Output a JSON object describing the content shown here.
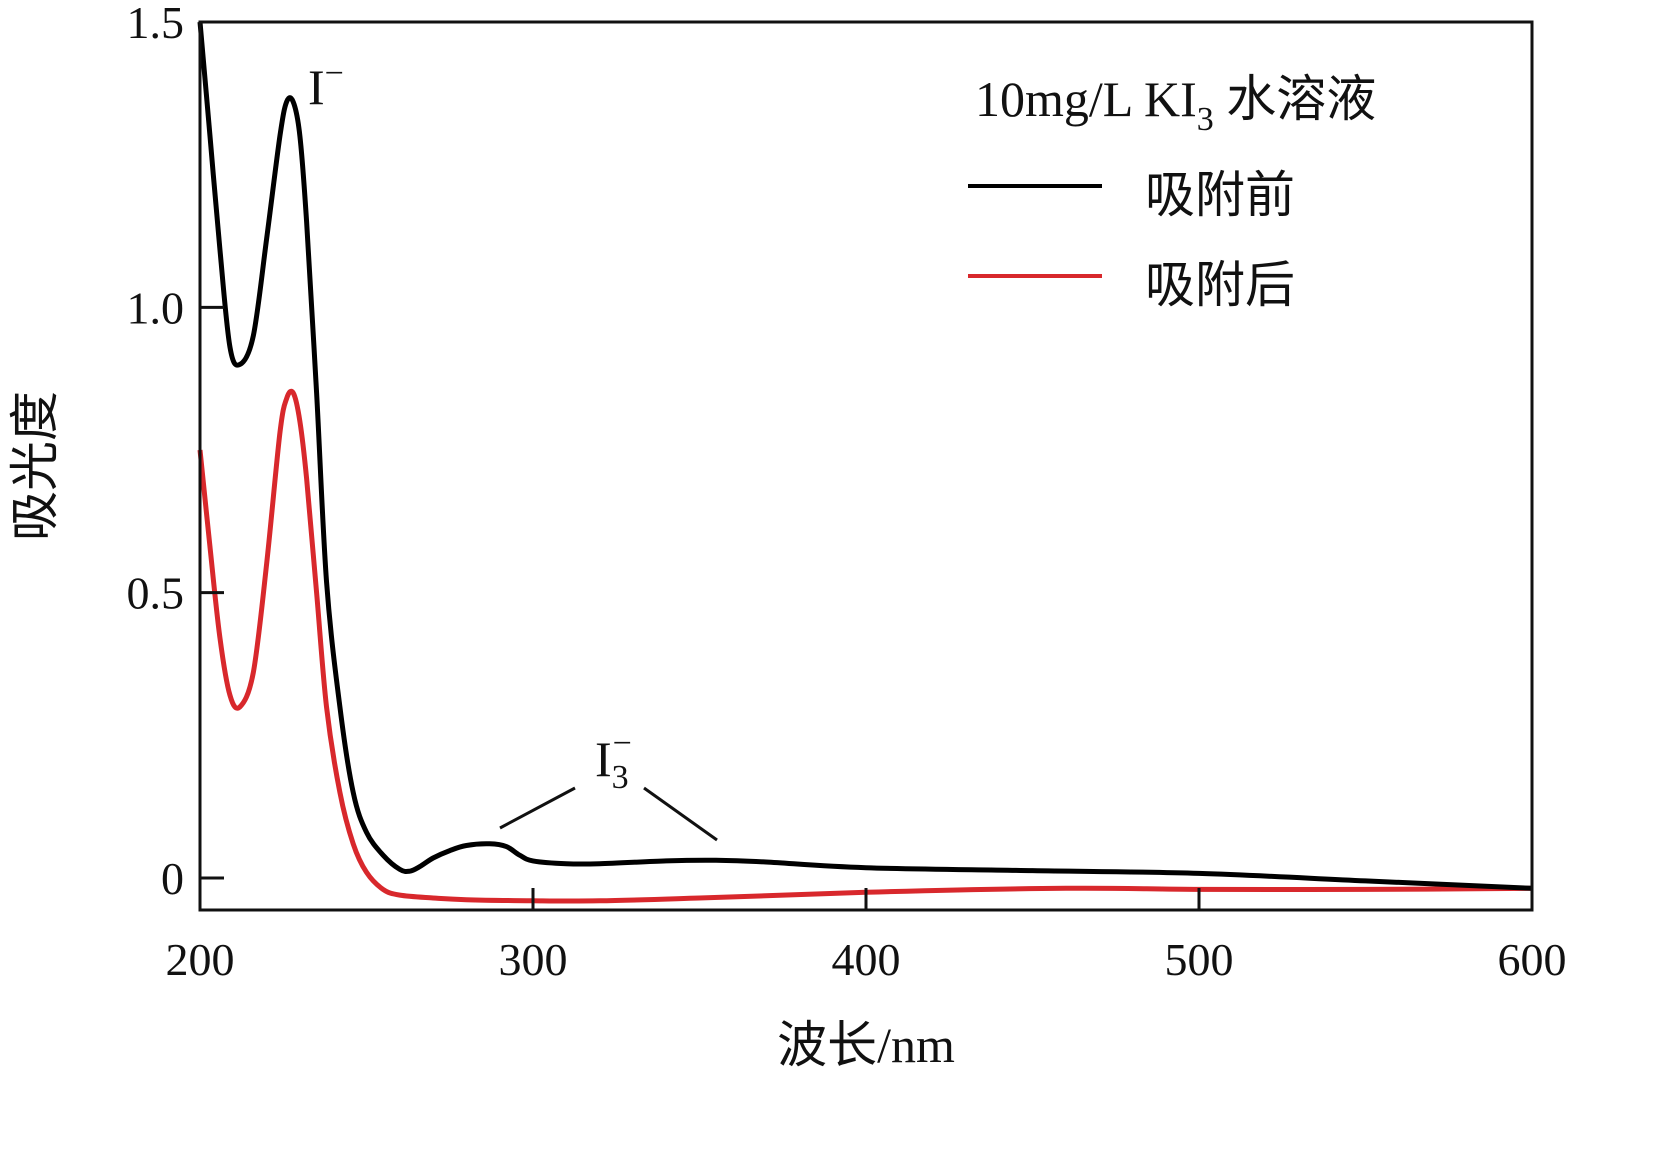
{
  "chart_data": {
    "type": "line",
    "xlabel": "波长/nm",
    "ylabel": "吸光度",
    "xlim": [
      200,
      600
    ],
    "ylim": [
      -0.06,
      1.5
    ],
    "x_ticks": [
      200,
      300,
      400,
      500,
      600
    ],
    "x_tick_labels": [
      "200",
      "300",
      "400",
      "500",
      "600"
    ],
    "y_ticks": [
      0,
      0.5,
      1.0,
      1.5
    ],
    "y_tick_labels": [
      "0",
      "0.5",
      "1.0",
      "1.5"
    ],
    "grid": false,
    "legend": {
      "title_prefix": "10mg/L  KI",
      "title_subscript": "3",
      "title_suffix": " 水溶液",
      "placement": "top-right"
    },
    "series": [
      {
        "name": "吸附前",
        "color": "#000000",
        "x": [
          200,
          203,
          206,
          209,
          212,
          216,
          220,
          224,
          226,
          228,
          230,
          232,
          235,
          238,
          242,
          246,
          250,
          255,
          260,
          263,
          266,
          270,
          275,
          280,
          287,
          292,
          296,
          300,
          310,
          320,
          340,
          355,
          370,
          400,
          450,
          500,
          550,
          600
        ],
        "y": [
          1.5,
          1.3,
          1.1,
          0.93,
          0.9,
          0.95,
          1.12,
          1.3,
          1.36,
          1.36,
          1.3,
          1.15,
          0.85,
          0.52,
          0.3,
          0.15,
          0.08,
          0.04,
          0.015,
          0.012,
          0.02,
          0.035,
          0.048,
          0.057,
          0.06,
          0.055,
          0.04,
          0.03,
          0.025,
          0.025,
          0.03,
          0.031,
          0.028,
          0.018,
          0.013,
          0.008,
          -0.005,
          -0.018
        ]
      },
      {
        "name": "吸附后",
        "color": "#d8282c",
        "x": [
          200,
          203,
          206,
          209,
          212,
          216,
          220,
          224,
          226,
          228,
          230,
          232,
          235,
          238,
          242,
          246,
          250,
          255,
          260,
          270,
          280,
          300,
          320,
          350,
          400,
          460,
          500,
          550,
          600
        ],
        "y": [
          0.75,
          0.58,
          0.42,
          0.32,
          0.3,
          0.36,
          0.55,
          0.78,
          0.84,
          0.85,
          0.8,
          0.7,
          0.5,
          0.3,
          0.15,
          0.06,
          0.01,
          -0.02,
          -0.03,
          -0.035,
          -0.038,
          -0.04,
          -0.04,
          -0.035,
          -0.025,
          -0.018,
          -0.02,
          -0.02,
          -0.018
        ]
      }
    ],
    "annotations": {
      "i_minus": {
        "base": "I",
        "sup": "−",
        "x": 228,
        "y": 1.36
      },
      "i3_minus": {
        "base": "I",
        "sub": "3",
        "sup": "−",
        "x": 310,
        "y": 0.18,
        "targets": [
          [
            290,
            0.085
          ],
          [
            355,
            0.06
          ]
        ]
      }
    }
  }
}
